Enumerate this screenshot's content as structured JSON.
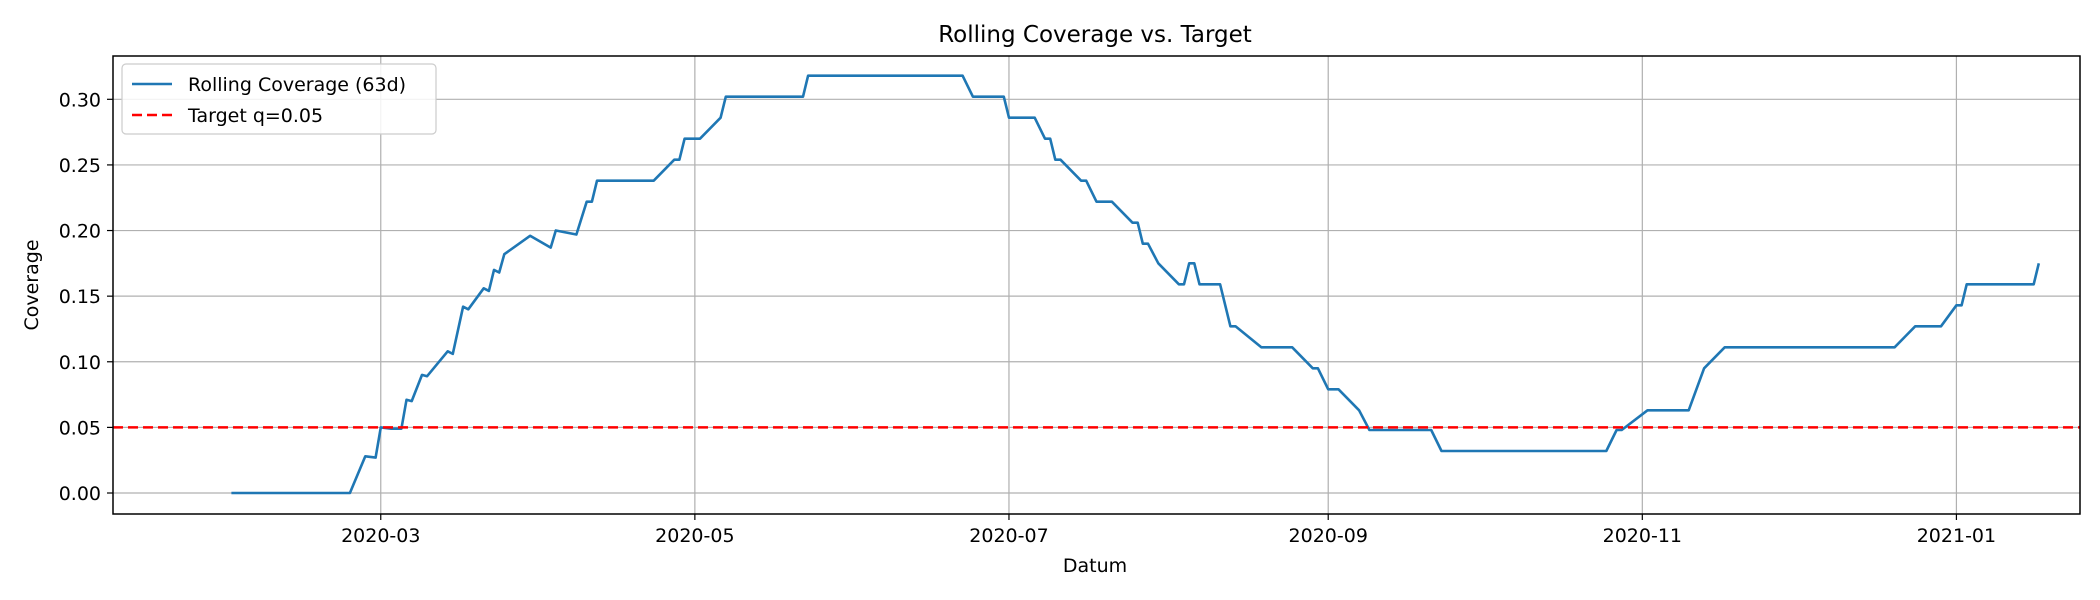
{
  "chart_data": {
    "type": "line",
    "title": "Rolling Coverage vs. Target",
    "xlabel": "Datum",
    "ylabel": "Coverage",
    "xlim": [
      "2020-01-09",
      "2021-01-25"
    ],
    "ylim": [
      -0.016,
      0.333
    ],
    "grid": true,
    "legend_position": "top-left",
    "x_ticks": [
      "2020-03-01",
      "2020-05-01",
      "2020-07-01",
      "2020-09-01",
      "2020-11-01",
      "2021-01-01"
    ],
    "x_tick_labels": [
      "2020-03",
      "2020-05",
      "2020-07",
      "2020-09",
      "2020-11",
      "2021-01"
    ],
    "y_ticks": [
      0.0,
      0.05,
      0.1,
      0.15,
      0.2,
      0.25,
      0.3
    ],
    "y_tick_labels": [
      "0.00",
      "0.05",
      "0.10",
      "0.15",
      "0.20",
      "0.25",
      "0.30"
    ],
    "series": [
      {
        "name": "Rolling Coverage (63d)",
        "color": "#1f77b4",
        "style": "solid",
        "points": [
          [
            "2020-02-01",
            0.0
          ],
          [
            "2020-02-24",
            0.0
          ],
          [
            "2020-02-27",
            0.028
          ],
          [
            "2020-02-29",
            0.027
          ],
          [
            "2020-03-01",
            0.05
          ],
          [
            "2020-03-03",
            0.049
          ],
          [
            "2020-03-05",
            0.049
          ],
          [
            "2020-03-06",
            0.071
          ],
          [
            "2020-03-07",
            0.07
          ],
          [
            "2020-03-09",
            0.09
          ],
          [
            "2020-03-10",
            0.089
          ],
          [
            "2020-03-14",
            0.108
          ],
          [
            "2020-03-15",
            0.106
          ],
          [
            "2020-03-17",
            0.142
          ],
          [
            "2020-03-18",
            0.14
          ],
          [
            "2020-03-21",
            0.156
          ],
          [
            "2020-03-22",
            0.154
          ],
          [
            "2020-03-23",
            0.17
          ],
          [
            "2020-03-24",
            0.168
          ],
          [
            "2020-03-25",
            0.182
          ],
          [
            "2020-03-30",
            0.196
          ],
          [
            "2020-04-03",
            0.187
          ],
          [
            "2020-04-04",
            0.2
          ],
          [
            "2020-04-08",
            0.197
          ],
          [
            "2020-04-10",
            0.222
          ],
          [
            "2020-04-11",
            0.222
          ],
          [
            "2020-04-12",
            0.238
          ],
          [
            "2020-04-23",
            0.238
          ],
          [
            "2020-04-27",
            0.254
          ],
          [
            "2020-04-28",
            0.254
          ],
          [
            "2020-04-29",
            0.27
          ],
          [
            "2020-05-02",
            0.27
          ],
          [
            "2020-05-06",
            0.286
          ],
          [
            "2020-05-07",
            0.302
          ],
          [
            "2020-05-22",
            0.302
          ],
          [
            "2020-05-23",
            0.318
          ],
          [
            "2020-06-02",
            0.318
          ],
          [
            "2020-06-22",
            0.318
          ],
          [
            "2020-06-24",
            0.302
          ],
          [
            "2020-06-30",
            0.302
          ],
          [
            "2020-07-01",
            0.286
          ],
          [
            "2020-07-06",
            0.286
          ],
          [
            "2020-07-08",
            0.27
          ],
          [
            "2020-07-09",
            0.27
          ],
          [
            "2020-07-10",
            0.254
          ],
          [
            "2020-07-11",
            0.254
          ],
          [
            "2020-07-15",
            0.238
          ],
          [
            "2020-07-16",
            0.238
          ],
          [
            "2020-07-18",
            0.222
          ],
          [
            "2020-07-21",
            0.222
          ],
          [
            "2020-07-25",
            0.206
          ],
          [
            "2020-07-26",
            0.206
          ],
          [
            "2020-07-27",
            0.19
          ],
          [
            "2020-07-28",
            0.19
          ],
          [
            "2020-07-30",
            0.175
          ],
          [
            "2020-08-03",
            0.159
          ],
          [
            "2020-08-04",
            0.159
          ],
          [
            "2020-08-05",
            0.175
          ],
          [
            "2020-08-06",
            0.175
          ],
          [
            "2020-08-07",
            0.159
          ],
          [
            "2020-08-11",
            0.159
          ],
          [
            "2020-08-13",
            0.127
          ],
          [
            "2020-08-14",
            0.127
          ],
          [
            "2020-08-19",
            0.111
          ],
          [
            "2020-08-25",
            0.111
          ],
          [
            "2020-08-29",
            0.095
          ],
          [
            "2020-08-30",
            0.095
          ],
          [
            "2020-09-01",
            0.079
          ],
          [
            "2020-09-03",
            0.079
          ],
          [
            "2020-09-07",
            0.063
          ],
          [
            "2020-09-09",
            0.048
          ],
          [
            "2020-09-21",
            0.048
          ],
          [
            "2020-09-23",
            0.032
          ],
          [
            "2020-10-25",
            0.032
          ],
          [
            "2020-10-27",
            0.048
          ],
          [
            "2020-10-28",
            0.048
          ],
          [
            "2020-11-02",
            0.063
          ],
          [
            "2020-11-10",
            0.063
          ],
          [
            "2020-11-13",
            0.095
          ],
          [
            "2020-11-17",
            0.111
          ],
          [
            "2020-12-20",
            0.111
          ],
          [
            "2020-12-24",
            0.127
          ],
          [
            "2020-12-29",
            0.127
          ],
          [
            "2021-01-01",
            0.143
          ],
          [
            "2021-01-02",
            0.143
          ],
          [
            "2021-01-03",
            0.159
          ],
          [
            "2021-01-16",
            0.159
          ],
          [
            "2021-01-17",
            0.175
          ]
        ]
      },
      {
        "name": "Target q=0.05",
        "color": "#ff0000",
        "style": "dashed",
        "constant": 0.05
      }
    ]
  }
}
